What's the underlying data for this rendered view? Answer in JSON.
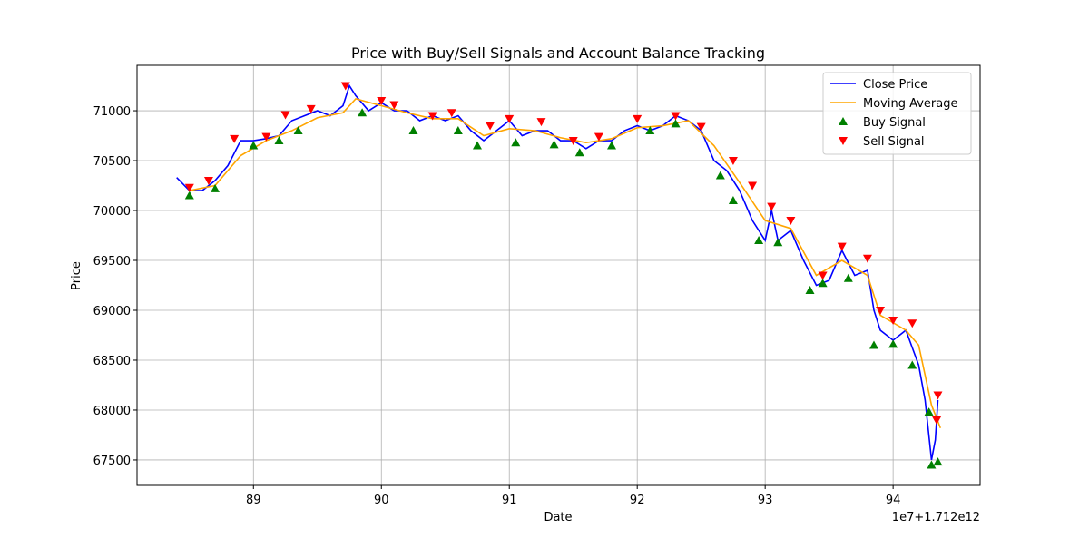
{
  "chart_data": {
    "type": "line",
    "title": "Price with Buy/Sell Signals and Account Balance Tracking",
    "xlabel": "Date",
    "ylabel": "Price",
    "x_offset_label": "1e7+1.712e12",
    "xlim": [
      88.09,
      94.68
    ],
    "ylim": [
      67245,
      71455
    ],
    "xticks": [
      89,
      90,
      91,
      92,
      93,
      94
    ],
    "yticks": [
      67500,
      68000,
      68500,
      69000,
      69500,
      70000,
      70500,
      71000
    ],
    "grid": true,
    "legend": "upper right",
    "series": [
      {
        "name": "Close Price",
        "type": "line",
        "color": "#0000ff",
        "x": [
          88.4,
          88.5,
          88.6,
          88.7,
          88.8,
          88.9,
          89.0,
          89.1,
          89.2,
          89.3,
          89.4,
          89.5,
          89.6,
          89.7,
          89.75,
          89.8,
          89.9,
          90.0,
          90.1,
          90.2,
          90.3,
          90.4,
          90.5,
          90.6,
          90.7,
          90.8,
          90.9,
          91.0,
          91.1,
          91.2,
          91.3,
          91.4,
          91.5,
          91.6,
          91.7,
          91.8,
          91.9,
          92.0,
          92.1,
          92.2,
          92.3,
          92.4,
          92.5,
          92.6,
          92.7,
          92.8,
          92.9,
          93.0,
          93.05,
          93.1,
          93.2,
          93.3,
          93.4,
          93.5,
          93.6,
          93.7,
          93.8,
          93.85,
          93.9,
          94.0,
          94.1,
          94.2,
          94.25,
          94.3,
          94.33,
          94.35
        ],
        "values": [
          70330,
          70200,
          70200,
          70300,
          70450,
          70700,
          70700,
          70720,
          70750,
          70900,
          70950,
          71000,
          70950,
          71050,
          71250,
          71150,
          71000,
          71080,
          71000,
          71000,
          70900,
          70950,
          70900,
          70950,
          70800,
          70700,
          70800,
          70900,
          70750,
          70800,
          70800,
          70700,
          70700,
          70620,
          70700,
          70700,
          70800,
          70850,
          70800,
          70850,
          70950,
          70900,
          70800,
          70500,
          70400,
          70200,
          69900,
          69700,
          70000,
          69700,
          69800,
          69500,
          69250,
          69300,
          69600,
          69350,
          69400,
          69000,
          68800,
          68700,
          68800,
          68450,
          68100,
          67500,
          67700,
          68100
        ]
      },
      {
        "name": "Moving Average",
        "type": "line",
        "color": "#ffa500",
        "x": [
          88.5,
          88.7,
          88.9,
          89.1,
          89.3,
          89.5,
          89.7,
          89.8,
          90.0,
          90.2,
          90.4,
          90.6,
          90.8,
          91.0,
          91.2,
          91.4,
          91.6,
          91.8,
          92.0,
          92.2,
          92.4,
          92.6,
          92.8,
          93.0,
          93.2,
          93.4,
          93.6,
          93.8,
          93.9,
          94.1,
          94.2,
          94.3,
          94.37
        ],
        "values": [
          70200,
          70250,
          70550,
          70700,
          70800,
          70930,
          70980,
          71120,
          71050,
          70980,
          70920,
          70920,
          70750,
          70820,
          70800,
          70730,
          70680,
          70720,
          70830,
          70850,
          70900,
          70650,
          70280,
          69900,
          69820,
          69350,
          69500,
          69350,
          68950,
          68800,
          68650,
          68050,
          67820
        ]
      },
      {
        "name": "Buy Signal",
        "type": "scatter",
        "marker": "up",
        "color": "#008000",
        "x": [
          88.5,
          88.7,
          89.0,
          89.2,
          89.35,
          89.85,
          90.25,
          90.6,
          90.75,
          91.05,
          91.35,
          91.55,
          91.8,
          92.1,
          92.3,
          92.65,
          92.75,
          92.95,
          93.1,
          93.35,
          93.45,
          93.65,
          93.85,
          94.0,
          94.15,
          94.28,
          94.3,
          94.35
        ],
        "values": [
          70150,
          70220,
          70650,
          70700,
          70800,
          70980,
          70800,
          70800,
          70650,
          70680,
          70660,
          70580,
          70650,
          70800,
          70870,
          70350,
          70100,
          69700,
          69680,
          69200,
          69270,
          69320,
          68650,
          68660,
          68450,
          67980,
          67450,
          67480
        ]
      },
      {
        "name": "Sell Signal",
        "type": "scatter",
        "marker": "down",
        "color": "#ff0000",
        "x": [
          88.5,
          88.65,
          88.85,
          89.1,
          89.25,
          89.45,
          89.72,
          90.0,
          90.1,
          90.4,
          90.55,
          90.85,
          91.0,
          91.25,
          91.5,
          91.7,
          92.0,
          92.3,
          92.5,
          92.75,
          92.9,
          93.05,
          93.2,
          93.45,
          93.6,
          93.8,
          93.9,
          94.0,
          94.15,
          94.34,
          94.35
        ],
        "values": [
          70230,
          70300,
          70720,
          70740,
          70960,
          71020,
          71250,
          71100,
          71060,
          70950,
          70980,
          70850,
          70920,
          70890,
          70700,
          70740,
          70920,
          70950,
          70840,
          70500,
          70250,
          70040,
          69900,
          69350,
          69640,
          69520,
          69000,
          68900,
          68870,
          67900,
          68150
        ]
      }
    ]
  }
}
